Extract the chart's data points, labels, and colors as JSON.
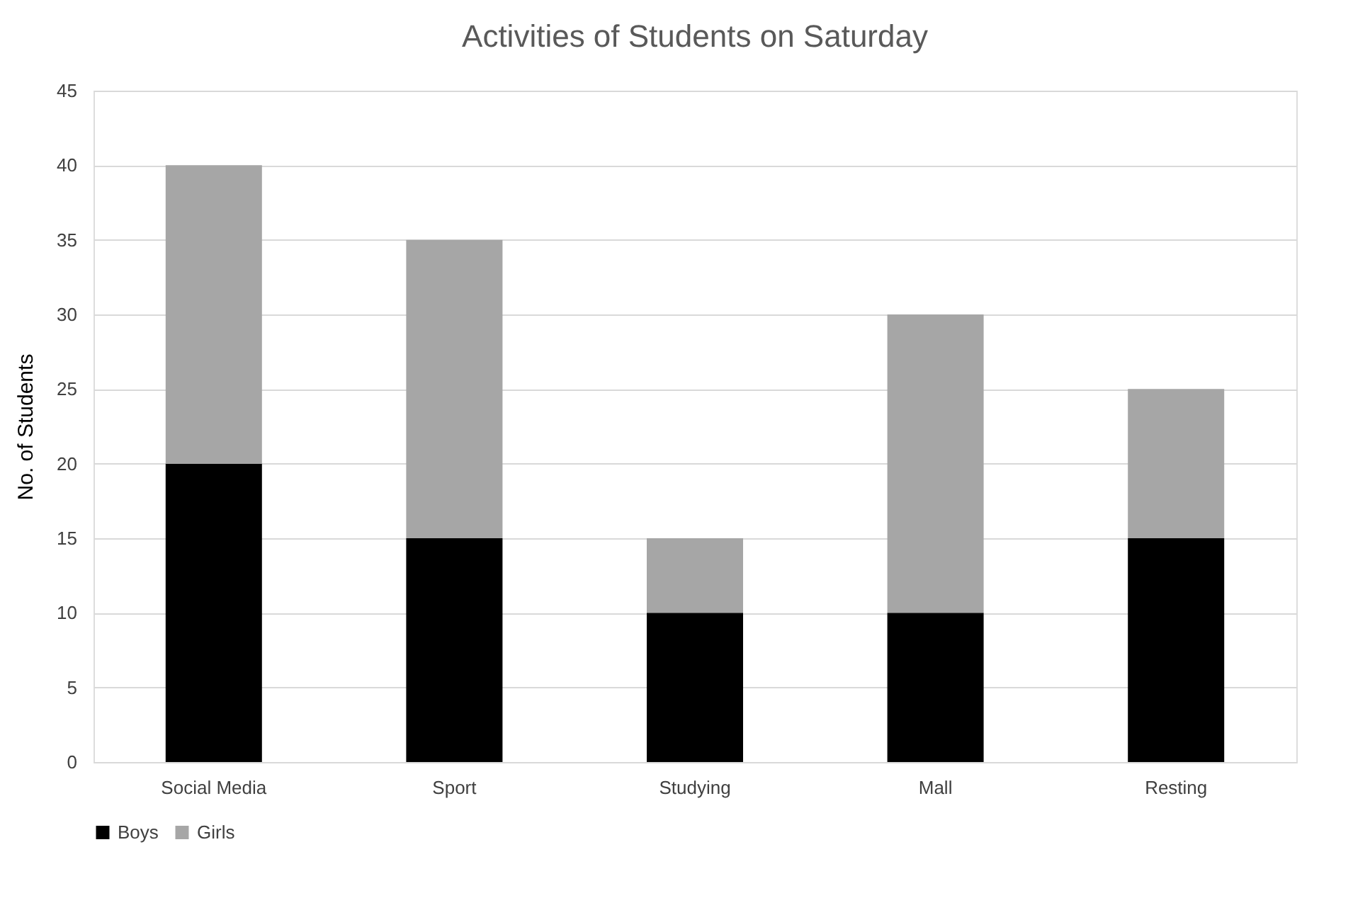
{
  "chart_data": {
    "type": "bar",
    "title": "Activities of Students on Saturday",
    "ylabel": "No. of Students",
    "categories": [
      "Social Media",
      "Sport",
      "Studying",
      "Mall",
      "Resting"
    ],
    "series": [
      {
        "name": "Boys",
        "color": "#000000",
        "values": [
          20,
          15,
          10,
          10,
          15
        ]
      },
      {
        "name": "Girls",
        "color": "#a6a6a6",
        "values": [
          20,
          20,
          5,
          20,
          10
        ]
      }
    ],
    "stacked": true,
    "ylim": [
      0,
      45
    ],
    "yticks": [
      0,
      5,
      10,
      15,
      20,
      25,
      30,
      35,
      40,
      45
    ],
    "grid": "y",
    "legend": "bottom"
  }
}
